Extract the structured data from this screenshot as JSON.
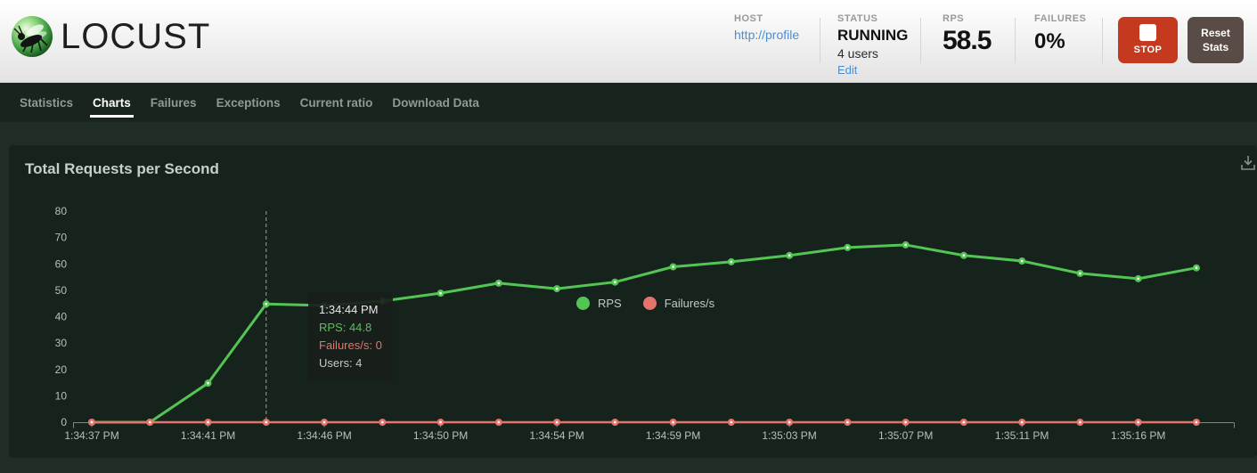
{
  "header": {
    "logo": "LOCUST",
    "stats": {
      "host": {
        "label": "HOST",
        "value": "http://profile"
      },
      "status": {
        "label": "STATUS",
        "value": "RUNNING",
        "users": "4 users",
        "edit_link": "Edit"
      },
      "rps": {
        "label": "RPS",
        "value": "58.5"
      },
      "failures": {
        "label": "FAILURES",
        "value": "0%"
      }
    },
    "stop_button_label": "STOP",
    "reset_button_label": "Reset Stats",
    "colors": {
      "stop_red": "#c5391f",
      "reset_gray": "#594c46",
      "link_blue": "#4a8fd3"
    }
  },
  "nav": {
    "tabs": [
      {
        "label": "Statistics",
        "active": false
      },
      {
        "label": "Charts",
        "active": true
      },
      {
        "label": "Failures",
        "active": false
      },
      {
        "label": "Exceptions",
        "active": false
      },
      {
        "label": "Current ratio",
        "active": false
      },
      {
        "label": "Download Data",
        "active": false
      }
    ]
  },
  "panel": {
    "title": "Total Requests per Second",
    "legend": [
      {
        "label": "RPS",
        "color": "#53c553"
      },
      {
        "label": "Failures/s",
        "color": "#e5736c"
      }
    ],
    "download_icon": "download-arrow-tray"
  },
  "tooltip": {
    "time": "1:34:44 PM",
    "rps": "RPS: 44.8",
    "failures": "Failures/s: 0",
    "users": "Users: 4"
  },
  "chart_data": {
    "type": "line",
    "title": "Total Requests per Second",
    "x_tick_labels": [
      "1:34:37 PM",
      "1:34:41 PM",
      "1:34:46 PM",
      "1:34:50 PM",
      "1:34:54 PM",
      "1:34:59 PM",
      "1:35:03 PM",
      "1:35:07 PM",
      "1:35:11 PM",
      "1:35:16 PM"
    ],
    "x_tick_point_indices": [
      0,
      2,
      4,
      6,
      8,
      10,
      12,
      14,
      16,
      18
    ],
    "points_count": 20,
    "series": [
      {
        "name": "RPS",
        "color": "#53c553",
        "values": [
          0,
          0,
          14.8,
          44.8,
          44.2,
          45.9,
          48.9,
          52.7,
          50.6,
          53.1,
          58.9,
          60.8,
          63.2,
          66.2,
          67.2,
          63.2,
          61.1,
          56.4,
          54.4,
          58.5
        ]
      },
      {
        "name": "Failures/s",
        "color": "#e5736c",
        "values": [
          0,
          0,
          0,
          0,
          0,
          0,
          0,
          0,
          0,
          0,
          0,
          0,
          0,
          0,
          0,
          0,
          0,
          0,
          0,
          0
        ]
      }
    ],
    "ylim": [
      0,
      80
    ],
    "yticks": [
      0,
      10,
      20,
      30,
      40,
      50,
      60,
      70,
      80
    ],
    "grid": false,
    "legend_position": "top-center",
    "tooltip_point_index": 3,
    "axis_color": "#7f887f",
    "label_color": "#b7c0b7",
    "crosshair_color": "#9aa29a"
  }
}
